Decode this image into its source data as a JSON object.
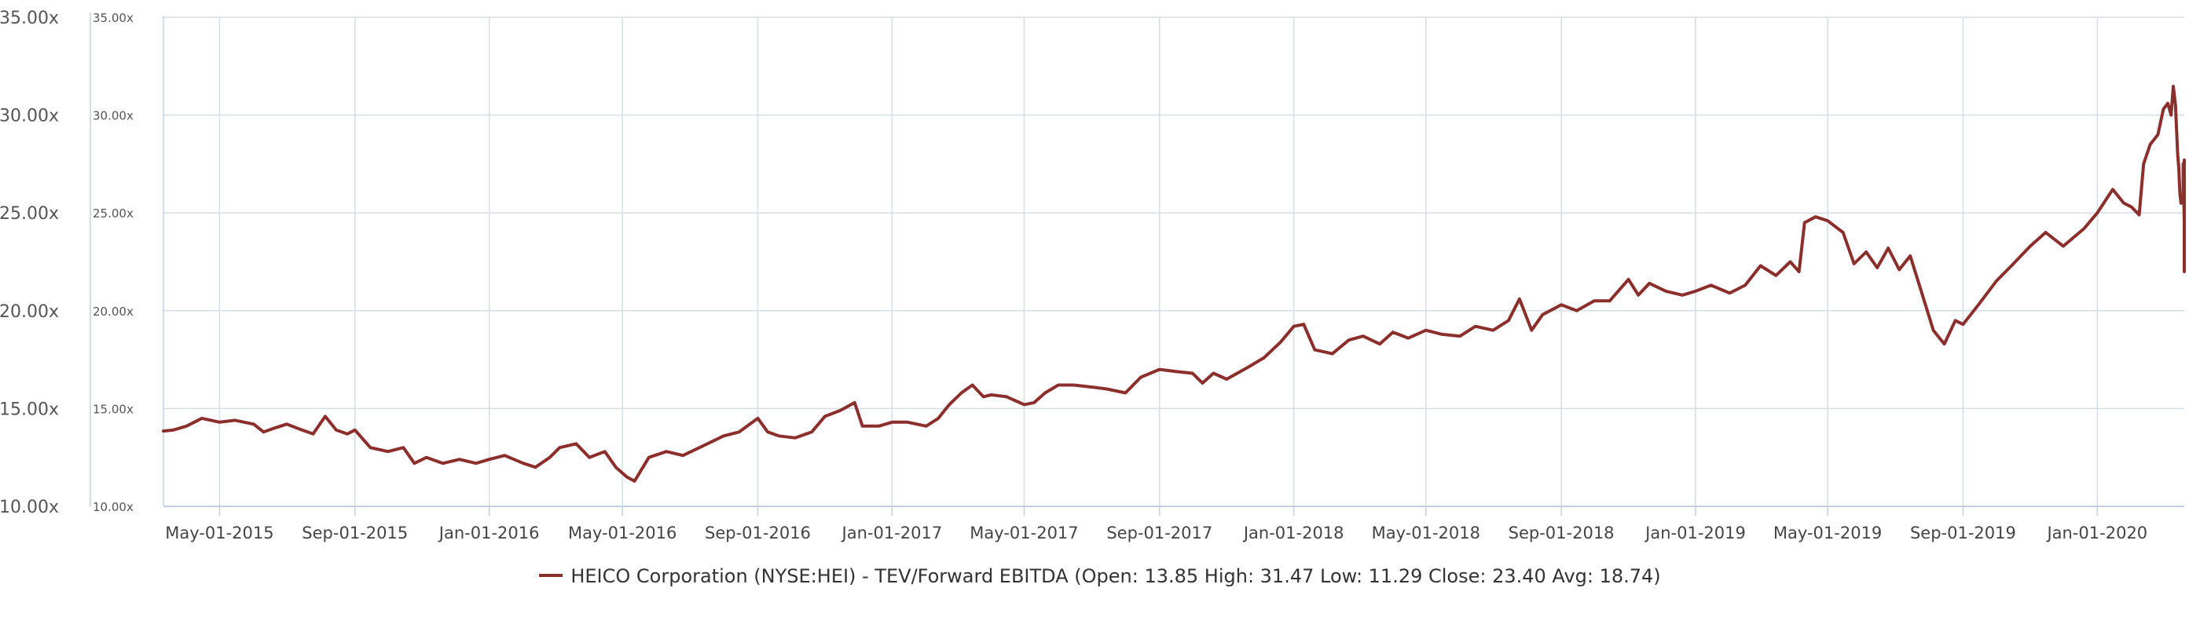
{
  "chart_data": {
    "type": "line",
    "title": "",
    "xlabel": "",
    "ylabel": "",
    "ylim": [
      10,
      35
    ],
    "grid": true,
    "legend_position": "bottom-center",
    "colors": {
      "series": "#8b2f2c",
      "grid": "#d5dde6",
      "axis": "#c0d0e0"
    },
    "y_ticks_outer": [
      "10.00x",
      "15.00x",
      "20.00x",
      "25.00x",
      "30.00x",
      "35.00x"
    ],
    "y_ticks_inner": [
      "10.00x",
      "15.00x",
      "20.00x",
      "25.00x",
      "30.00x",
      "35.00x"
    ],
    "y_tick_values": [
      10,
      15,
      20,
      25,
      30,
      35
    ],
    "x_ticks": [
      {
        "label": "May-01-2015",
        "date": "2015-05-01"
      },
      {
        "label": "Sep-01-2015",
        "date": "2015-09-01"
      },
      {
        "label": "Jan-01-2016",
        "date": "2016-01-01"
      },
      {
        "label": "May-01-2016",
        "date": "2016-05-01"
      },
      {
        "label": "Sep-01-2016",
        "date": "2016-09-01"
      },
      {
        "label": "Jan-01-2017",
        "date": "2017-01-01"
      },
      {
        "label": "May-01-2017",
        "date": "2017-05-01"
      },
      {
        "label": "Sep-01-2017",
        "date": "2017-09-01"
      },
      {
        "label": "Jan-01-2018",
        "date": "2018-01-01"
      },
      {
        "label": "May-01-2018",
        "date": "2018-05-01"
      },
      {
        "label": "Sep-01-2018",
        "date": "2018-09-01"
      },
      {
        "label": "Jan-01-2019",
        "date": "2019-01-01"
      },
      {
        "label": "May-01-2019",
        "date": "2019-05-01"
      },
      {
        "label": "Sep-01-2019",
        "date": "2019-09-01"
      },
      {
        "label": "Jan-01-2020",
        "date": "2020-01-01"
      }
    ],
    "x_range": [
      "2015-03-11",
      "2020-03-20"
    ],
    "legend_label": "HEICO Corporation (NYSE:HEI) - TEV/Forward EBITDA (Open: 13.85 High: 31.47 Low: 11.29 Close: 23.40 Avg: 18.74)",
    "series": [
      {
        "name": "HEICO Corporation (NYSE:HEI) - TEV/Forward EBITDA",
        "points": [
          [
            "2015-03-11",
            13.85
          ],
          [
            "2015-03-20",
            13.9
          ],
          [
            "2015-04-01",
            14.1
          ],
          [
            "2015-04-15",
            14.5
          ],
          [
            "2015-05-01",
            14.3
          ],
          [
            "2015-05-15",
            14.4
          ],
          [
            "2015-06-01",
            14.2
          ],
          [
            "2015-06-10",
            13.8
          ],
          [
            "2015-06-20",
            14.0
          ],
          [
            "2015-07-01",
            14.2
          ],
          [
            "2015-07-15",
            13.9
          ],
          [
            "2015-07-25",
            13.7
          ],
          [
            "2015-08-05",
            14.6
          ],
          [
            "2015-08-15",
            13.9
          ],
          [
            "2015-08-25",
            13.7
          ],
          [
            "2015-09-01",
            13.9
          ],
          [
            "2015-09-15",
            13.0
          ],
          [
            "2015-10-01",
            12.8
          ],
          [
            "2015-10-15",
            13.0
          ],
          [
            "2015-10-25",
            12.2
          ],
          [
            "2015-11-05",
            12.5
          ],
          [
            "2015-11-20",
            12.2
          ],
          [
            "2015-12-05",
            12.4
          ],
          [
            "2015-12-20",
            12.2
          ],
          [
            "2016-01-01",
            12.4
          ],
          [
            "2016-01-15",
            12.6
          ],
          [
            "2016-02-01",
            12.2
          ],
          [
            "2016-02-12",
            12.0
          ],
          [
            "2016-02-25",
            12.5
          ],
          [
            "2016-03-05",
            13.0
          ],
          [
            "2016-03-20",
            13.2
          ],
          [
            "2016-04-01",
            12.5
          ],
          [
            "2016-04-15",
            12.8
          ],
          [
            "2016-04-25",
            12.0
          ],
          [
            "2016-05-05",
            11.5
          ],
          [
            "2016-05-12",
            11.29
          ],
          [
            "2016-05-25",
            12.5
          ],
          [
            "2016-06-10",
            12.8
          ],
          [
            "2016-06-25",
            12.6
          ],
          [
            "2016-07-10",
            13.0
          ],
          [
            "2016-08-01",
            13.6
          ],
          [
            "2016-08-15",
            13.8
          ],
          [
            "2016-09-01",
            14.5
          ],
          [
            "2016-09-10",
            13.8
          ],
          [
            "2016-09-20",
            13.6
          ],
          [
            "2016-10-05",
            13.5
          ],
          [
            "2016-10-20",
            13.8
          ],
          [
            "2016-11-01",
            14.6
          ],
          [
            "2016-11-15",
            14.9
          ],
          [
            "2016-11-28",
            15.3
          ],
          [
            "2016-12-05",
            14.1
          ],
          [
            "2016-12-20",
            14.1
          ],
          [
            "2017-01-01",
            14.3
          ],
          [
            "2017-01-15",
            14.3
          ],
          [
            "2017-02-01",
            14.1
          ],
          [
            "2017-02-12",
            14.5
          ],
          [
            "2017-02-22",
            15.2
          ],
          [
            "2017-03-05",
            15.8
          ],
          [
            "2017-03-15",
            16.2
          ],
          [
            "2017-03-25",
            15.6
          ],
          [
            "2017-04-01",
            15.7
          ],
          [
            "2017-04-15",
            15.6
          ],
          [
            "2017-05-01",
            15.2
          ],
          [
            "2017-05-10",
            15.3
          ],
          [
            "2017-05-20",
            15.8
          ],
          [
            "2017-06-01",
            16.2
          ],
          [
            "2017-06-15",
            16.2
          ],
          [
            "2017-07-01",
            16.1
          ],
          [
            "2017-07-15",
            16.0
          ],
          [
            "2017-08-01",
            15.8
          ],
          [
            "2017-08-15",
            16.6
          ],
          [
            "2017-09-01",
            17.0
          ],
          [
            "2017-09-15",
            16.9
          ],
          [
            "2017-10-01",
            16.8
          ],
          [
            "2017-10-10",
            16.3
          ],
          [
            "2017-10-20",
            16.8
          ],
          [
            "2017-11-01",
            16.5
          ],
          [
            "2017-11-20",
            17.1
          ],
          [
            "2017-12-05",
            17.6
          ],
          [
            "2017-12-20",
            18.4
          ],
          [
            "2018-01-01",
            19.2
          ],
          [
            "2018-01-10",
            19.3
          ],
          [
            "2018-01-20",
            18.0
          ],
          [
            "2018-02-05",
            17.8
          ],
          [
            "2018-02-20",
            18.5
          ],
          [
            "2018-03-05",
            18.7
          ],
          [
            "2018-03-20",
            18.3
          ],
          [
            "2018-04-01",
            18.9
          ],
          [
            "2018-04-15",
            18.6
          ],
          [
            "2018-05-01",
            19.0
          ],
          [
            "2018-05-15",
            18.8
          ],
          [
            "2018-06-01",
            18.7
          ],
          [
            "2018-06-15",
            19.2
          ],
          [
            "2018-07-01",
            19.0
          ],
          [
            "2018-07-15",
            19.5
          ],
          [
            "2018-07-25",
            20.6
          ],
          [
            "2018-08-05",
            19.0
          ],
          [
            "2018-08-15",
            19.8
          ],
          [
            "2018-09-01",
            20.3
          ],
          [
            "2018-09-15",
            20.0
          ],
          [
            "2018-10-01",
            20.5
          ],
          [
            "2018-10-15",
            20.5
          ],
          [
            "2018-11-01",
            21.6
          ],
          [
            "2018-11-10",
            20.8
          ],
          [
            "2018-11-20",
            21.4
          ],
          [
            "2018-12-05",
            21.0
          ],
          [
            "2018-12-20",
            20.8
          ],
          [
            "2019-01-01",
            21.0
          ],
          [
            "2019-01-15",
            21.3
          ],
          [
            "2019-02-01",
            20.9
          ],
          [
            "2019-02-15",
            21.3
          ],
          [
            "2019-03-01",
            22.3
          ],
          [
            "2019-03-15",
            21.8
          ],
          [
            "2019-03-28",
            22.5
          ],
          [
            "2019-04-05",
            22.0
          ],
          [
            "2019-04-10",
            24.5
          ],
          [
            "2019-04-20",
            24.8
          ],
          [
            "2019-05-01",
            24.6
          ],
          [
            "2019-05-15",
            24.0
          ],
          [
            "2019-05-25",
            22.4
          ],
          [
            "2019-06-05",
            23.0
          ],
          [
            "2019-06-15",
            22.2
          ],
          [
            "2019-06-25",
            23.2
          ],
          [
            "2019-07-05",
            22.1
          ],
          [
            "2019-07-15",
            22.8
          ],
          [
            "2019-07-25",
            21.0
          ],
          [
            "2019-08-05",
            19.0
          ],
          [
            "2019-08-15",
            18.3
          ],
          [
            "2019-08-25",
            19.5
          ],
          [
            "2019-09-01",
            19.3
          ],
          [
            "2019-09-15",
            20.3
          ],
          [
            "2019-10-01",
            21.5
          ],
          [
            "2019-10-15",
            22.3
          ],
          [
            "2019-11-01",
            23.3
          ],
          [
            "2019-11-15",
            24.0
          ],
          [
            "2019-12-01",
            23.3
          ],
          [
            "2019-12-20",
            24.2
          ],
          [
            "2020-01-01",
            25.0
          ],
          [
            "2020-01-15",
            26.2
          ],
          [
            "2020-01-25",
            25.5
          ],
          [
            "2020-02-01",
            25.3
          ],
          [
            "2020-02-08",
            24.9
          ],
          [
            "2020-02-12",
            27.5
          ],
          [
            "2020-02-18",
            28.5
          ],
          [
            "2020-02-25",
            29.0
          ],
          [
            "2020-03-01",
            30.3
          ],
          [
            "2020-03-05",
            30.6
          ],
          [
            "2020-03-08",
            30.0
          ],
          [
            "2020-03-10",
            31.47
          ],
          [
            "2020-03-12",
            30.5
          ],
          [
            "2020-03-14",
            28.0
          ],
          [
            "2020-03-15",
            27.3
          ],
          [
            "2020-03-16",
            26.0
          ],
          [
            "2020-03-17",
            25.5
          ],
          [
            "2020-03-18",
            25.5
          ],
          [
            "2020-03-19",
            26.0
          ],
          [
            "2020-03-19",
            27.5
          ],
          [
            "2020-03-20",
            24.5
          ],
          [
            "2020-03-20",
            26.0
          ],
          [
            "2020-03-20",
            26.5
          ],
          [
            "2020-03-20",
            27.7
          ],
          [
            "2020-03-20",
            25.0
          ],
          [
            "2020-03-20",
            22.0
          ],
          [
            "2020-03-20",
            23.4
          ]
        ]
      }
    ]
  }
}
